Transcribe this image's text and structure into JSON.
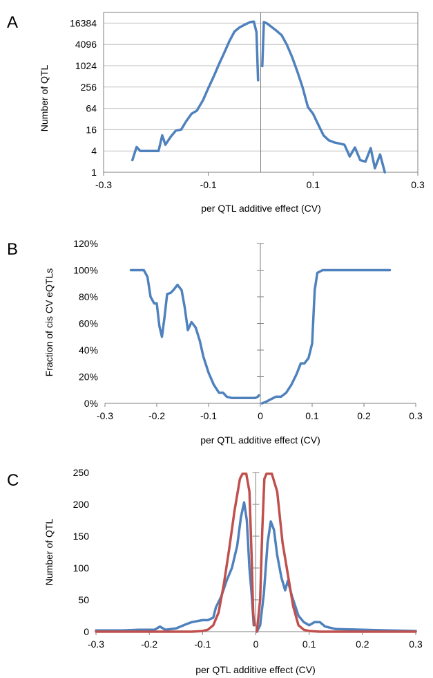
{
  "chart_data": [
    {
      "panel_label": "A",
      "type": "line",
      "xlabel": "per QTL additive effect (CV)",
      "ylabel": "Number of QTL",
      "xlim": [
        -0.3,
        0.3
      ],
      "x_ticks": [
        "-0.3",
        "-0.1",
        "0.1",
        "0.3"
      ],
      "y_scale": "log2",
      "ylim": [
        1,
        32768
      ],
      "y_ticks": [
        "1",
        "4",
        "16",
        "64",
        "256",
        "1024",
        "4096",
        "16384"
      ],
      "grid": "horizontal",
      "colors": {
        "series": "#4f81bd",
        "axis": "#7f7f7f",
        "grid": "#bfbfbf"
      },
      "series": [
        {
          "segments": [
            [
              [
                -0.245,
                2.2
              ],
              [
                -0.237,
                5.2
              ],
              [
                -0.23,
                4
              ],
              [
                -0.21,
                4
              ],
              [
                -0.195,
                4
              ],
              [
                -0.188,
                11
              ],
              [
                -0.182,
                6
              ],
              [
                -0.172,
                10
              ],
              [
                -0.162,
                15
              ],
              [
                -0.152,
                16
              ],
              [
                -0.142,
                28
              ],
              [
                -0.132,
                45
              ],
              [
                -0.122,
                55
              ],
              [
                -0.11,
                110
              ],
              [
                -0.1,
                240
              ],
              [
                -0.09,
                500
              ],
              [
                -0.08,
                1100
              ],
              [
                -0.07,
                2300
              ],
              [
                -0.06,
                5000
              ],
              [
                -0.05,
                9500
              ],
              [
                -0.04,
                12500
              ],
              [
                -0.03,
                15000
              ],
              [
                -0.02,
                17500
              ],
              [
                -0.013,
                18000
              ],
              [
                -0.008,
                9000
              ],
              [
                -0.005,
                400
              ]
            ],
            [
              [
                0.003,
                1000
              ],
              [
                0.006,
                17500
              ],
              [
                0.012,
                16000
              ],
              [
                0.02,
                13000
              ],
              [
                0.03,
                10000
              ],
              [
                0.04,
                7500
              ],
              [
                0.05,
                4000
              ],
              [
                0.06,
                1800
              ],
              [
                0.07,
                700
              ],
              [
                0.08,
                250
              ],
              [
                0.09,
                70
              ],
              [
                0.1,
                45
              ],
              [
                0.11,
                22
              ],
              [
                0.12,
                11
              ],
              [
                0.13,
                8
              ],
              [
                0.14,
                7
              ],
              [
                0.15,
                6.5
              ],
              [
                0.16,
                6
              ],
              [
                0.17,
                2.8
              ],
              [
                0.18,
                5
              ],
              [
                0.19,
                2.2
              ],
              [
                0.2,
                2
              ],
              [
                0.21,
                4.8
              ],
              [
                0.218,
                1.3
              ],
              [
                0.228,
                3.2
              ],
              [
                0.237,
                1
              ]
            ]
          ]
        }
      ]
    },
    {
      "panel_label": "B",
      "type": "line",
      "xlabel": "per QTL additive effect (CV)",
      "ylabel": "Fraction of cis CV eQTLs",
      "xlim": [
        -0.3,
        0.3
      ],
      "x_ticks": [
        "-0.3",
        "-0.2",
        "-0.1",
        "0",
        "0.1",
        "0.2",
        "0.3"
      ],
      "ylim": [
        0,
        1.2
      ],
      "y_ticks": [
        "0%",
        "20%",
        "40%",
        "60%",
        "80%",
        "100%",
        "120%"
      ],
      "grid": "none",
      "colors": {
        "series": "#4f81bd",
        "axis": "#7f7f7f"
      },
      "series": [
        {
          "segments": [
            [
              [
                -0.25,
                1.0
              ],
              [
                -0.225,
                1.0
              ],
              [
                -0.218,
                0.95
              ],
              [
                -0.212,
                0.8
              ],
              [
                -0.205,
                0.75
              ],
              [
                -0.2,
                0.75
              ],
              [
                -0.195,
                0.58
              ],
              [
                -0.19,
                0.5
              ],
              [
                -0.185,
                0.65
              ],
              [
                -0.18,
                0.82
              ],
              [
                -0.173,
                0.83
              ],
              [
                -0.168,
                0.85
              ],
              [
                -0.16,
                0.89
              ],
              [
                -0.152,
                0.85
              ],
              [
                -0.146,
                0.72
              ],
              [
                -0.14,
                0.55
              ],
              [
                -0.133,
                0.61
              ],
              [
                -0.125,
                0.57
              ],
              [
                -0.117,
                0.47
              ],
              [
                -0.11,
                0.35
              ],
              [
                -0.1,
                0.23
              ],
              [
                -0.09,
                0.14
              ],
              [
                -0.08,
                0.08
              ],
              [
                -0.072,
                0.08
              ],
              [
                -0.065,
                0.05
              ],
              [
                -0.055,
                0.04
              ],
              [
                -0.03,
                0.04
              ],
              [
                -0.01,
                0.04
              ],
              [
                -0.005,
                0.05
              ],
              [
                -0.003,
                0.06
              ]
            ],
            [
              [
                0.003,
                0.0
              ],
              [
                0.01,
                0.01
              ],
              [
                0.02,
                0.03
              ],
              [
                0.03,
                0.05
              ],
              [
                0.04,
                0.05
              ],
              [
                0.05,
                0.08
              ],
              [
                0.06,
                0.14
              ],
              [
                0.07,
                0.22
              ],
              [
                0.078,
                0.3
              ],
              [
                0.085,
                0.3
              ],
              [
                0.093,
                0.34
              ],
              [
                0.1,
                0.45
              ],
              [
                0.105,
                0.85
              ],
              [
                0.11,
                0.98
              ],
              [
                0.12,
                1.0
              ],
              [
                0.15,
                1.0
              ],
              [
                0.2,
                1.0
              ],
              [
                0.25,
                1.0
              ]
            ]
          ]
        }
      ]
    },
    {
      "panel_label": "C",
      "type": "line",
      "xlabel": "per QTL additive effect (CV)",
      "ylabel": "Number of QTL",
      "xlim": [
        -0.3,
        0.3
      ],
      "x_ticks": [
        "-0.3",
        "-0.2",
        "-0.1",
        "0",
        "0.1",
        "0.2",
        "0.3"
      ],
      "ylim": [
        0,
        250
      ],
      "y_ticks": [
        "0",
        "50",
        "100",
        "150",
        "200",
        "250"
      ],
      "grid": "none",
      "colors": {
        "series_1": "#4f81bd",
        "series_2": "#c0504d",
        "axis": "#7f7f7f"
      },
      "series": [
        {
          "color": "#4f81bd",
          "segments": [
            [
              [
                -0.3,
                2
              ],
              [
                -0.25,
                2
              ],
              [
                -0.22,
                3
              ],
              [
                -0.19,
                3
              ],
              [
                -0.18,
                8
              ],
              [
                -0.17,
                3
              ],
              [
                -0.15,
                5
              ],
              [
                -0.13,
                12
              ],
              [
                -0.12,
                15
              ],
              [
                -0.1,
                18
              ],
              [
                -0.09,
                18
              ],
              [
                -0.08,
                22
              ],
              [
                -0.075,
                38
              ],
              [
                -0.065,
                55
              ],
              [
                -0.055,
                80
              ],
              [
                -0.045,
                100
              ],
              [
                -0.035,
                135
              ],
              [
                -0.028,
                180
              ],
              [
                -0.022,
                203
              ],
              [
                -0.017,
                175
              ],
              [
                -0.012,
                100
              ],
              [
                -0.008,
                60
              ],
              [
                -0.004,
                10
              ]
            ],
            [
              [
                0.002,
                0
              ],
              [
                0.008,
                10
              ],
              [
                0.015,
                60
              ],
              [
                0.022,
                140
              ],
              [
                0.028,
                173
              ],
              [
                0.034,
                160
              ],
              [
                0.04,
                120
              ],
              [
                0.048,
                85
              ],
              [
                0.055,
                65
              ],
              [
                0.06,
                80
              ],
              [
                0.068,
                55
              ],
              [
                0.08,
                25
              ],
              [
                0.09,
                15
              ],
              [
                0.1,
                10
              ],
              [
                0.11,
                15
              ],
              [
                0.12,
                15
              ],
              [
                0.13,
                8
              ],
              [
                0.15,
                4
              ],
              [
                0.2,
                3
              ],
              [
                0.25,
                2
              ],
              [
                0.3,
                1
              ]
            ]
          ]
        },
        {
          "color": "#c0504d",
          "segments": [
            [
              [
                -0.3,
                0
              ],
              [
                -0.2,
                0
              ],
              [
                -0.12,
                0
              ],
              [
                -0.1,
                1
              ],
              [
                -0.09,
                3
              ],
              [
                -0.08,
                10
              ],
              [
                -0.07,
                30
              ],
              [
                -0.06,
                75
              ],
              [
                -0.05,
                130
              ],
              [
                -0.04,
                190
              ],
              [
                -0.03,
                240
              ],
              [
                -0.025,
                248
              ],
              [
                -0.018,
                248
              ],
              [
                -0.012,
                220
              ],
              [
                -0.008,
                120
              ],
              [
                -0.005,
                30
              ],
              [
                -0.003,
                10
              ]
            ],
            [
              [
                0.002,
                0
              ],
              [
                0.008,
                50
              ],
              [
                0.012,
                160
              ],
              [
                0.016,
                240
              ],
              [
                0.02,
                248
              ],
              [
                0.03,
                248
              ],
              [
                0.04,
                220
              ],
              [
                0.05,
                140
              ],
              [
                0.06,
                90
              ],
              [
                0.07,
                40
              ],
              [
                0.08,
                10
              ],
              [
                0.09,
                3
              ],
              [
                0.1,
                1
              ],
              [
                0.12,
                0
              ],
              [
                0.2,
                0
              ],
              [
                0.3,
                0
              ]
            ]
          ]
        }
      ]
    }
  ]
}
